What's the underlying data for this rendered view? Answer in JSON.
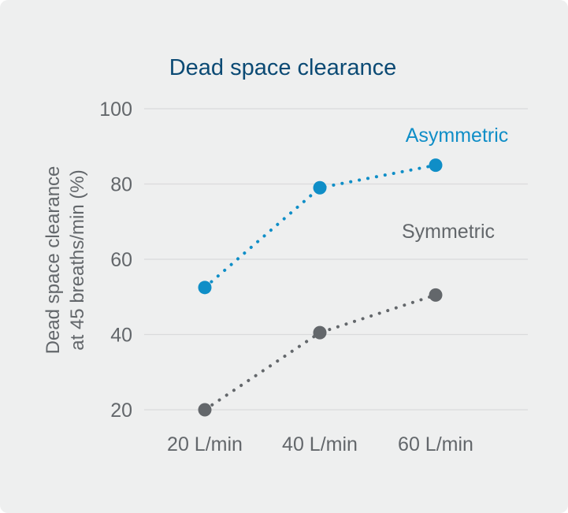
{
  "chart_data": {
    "type": "line",
    "title": "Dead space clearance",
    "ylabel_lines": [
      "Dead space clearance",
      "at 45 breaths/min (%)"
    ],
    "xlabel": "",
    "categories": [
      "20 L/min",
      "40 L/min",
      "60 L/min"
    ],
    "ylim": [
      20,
      100
    ],
    "yticks": [
      20,
      40,
      60,
      80,
      100
    ],
    "grid": true,
    "series": [
      {
        "name": "Asymmetric",
        "values": [
          52.5,
          79,
          85
        ],
        "color": "#0f8ec7",
        "line_style": "dotted"
      },
      {
        "name": "Symmetric",
        "values": [
          20,
          40.5,
          50.5
        ],
        "color": "#63676b",
        "line_style": "dotted"
      }
    ]
  },
  "colors": {
    "background": "#eeefef",
    "title": "#0b4a74",
    "axis_text": "#63676b",
    "grid": "#d9dbdc"
  }
}
